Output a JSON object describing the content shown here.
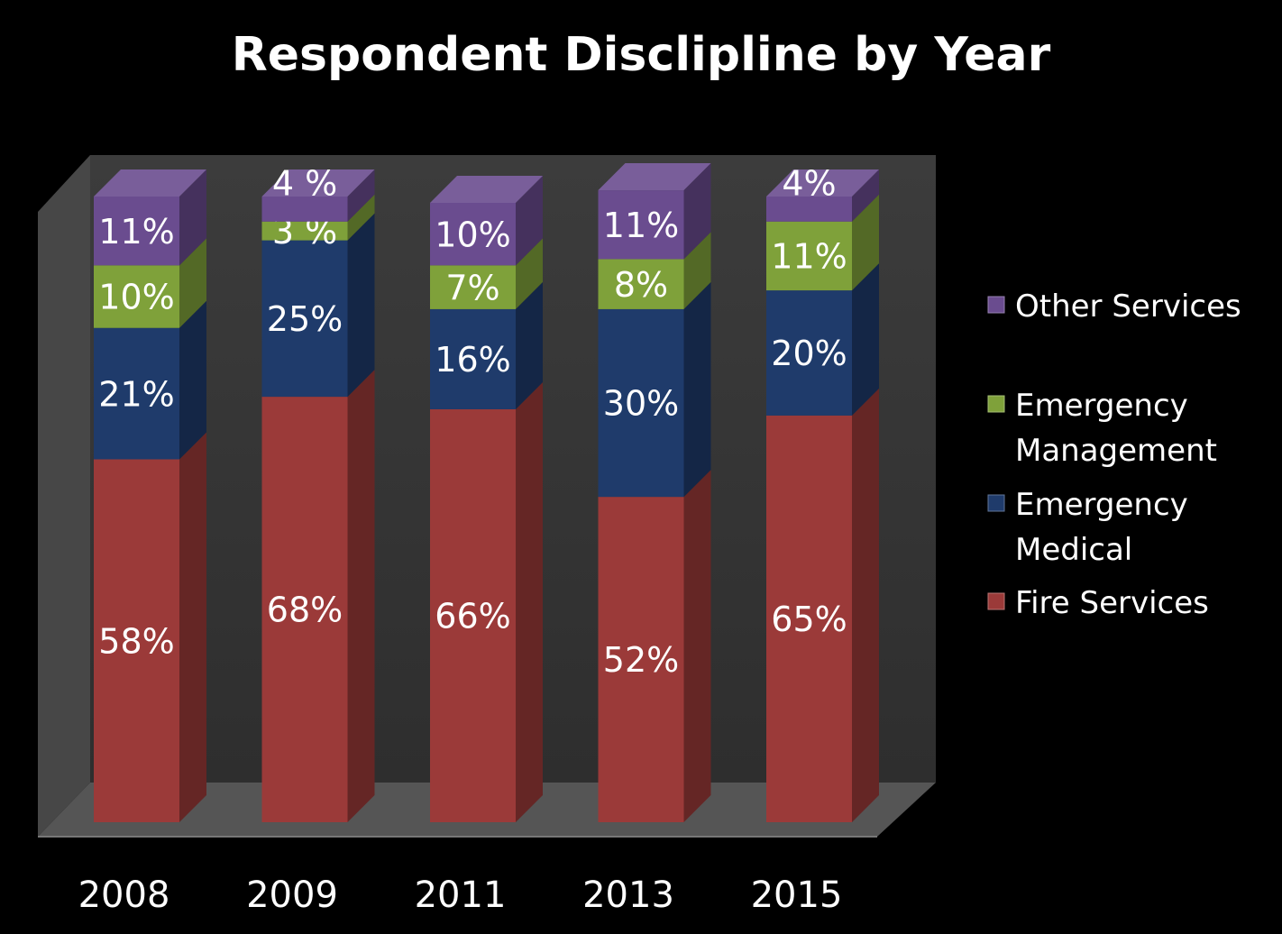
{
  "chart_data": {
    "type": "bar",
    "stacked": true,
    "three_d": true,
    "title": "Respondent Disclipline by Year",
    "categories": [
      "2008",
      "2009",
      "2011",
      "2013",
      "2015"
    ],
    "series": [
      {
        "name": "Fire Services",
        "color": "#9b3a39",
        "values": [
          58,
          68,
          66,
          52,
          65
        ],
        "labels": [
          "58%",
          "68%",
          "66%",
          "52%",
          "65%"
        ]
      },
      {
        "name": "Emergency Medical",
        "color": "#1f3b6b",
        "values": [
          21,
          25,
          16,
          30,
          20
        ],
        "labels": [
          "21%",
          "25%",
          "16%",
          "30%",
          "20%"
        ]
      },
      {
        "name": "Emergency Management",
        "color": "#7fa13a",
        "values": [
          10,
          3,
          7,
          8,
          11
        ],
        "labels": [
          "10%",
          "3 %",
          "7%",
          "8%",
          "11%"
        ]
      },
      {
        "name": "Other Services",
        "color": "#6a4c8f",
        "values": [
          11,
          4,
          10,
          11,
          4
        ],
        "labels": [
          "11%",
          "4 %",
          "10%",
          "11%",
          "4%"
        ]
      }
    ],
    "legend": {
      "position": "right",
      "order": [
        "Other Services",
        "Emergency Management",
        "Emergency Medical",
        "Fire Services"
      ]
    },
    "background_color": "#000000",
    "wall_color": "#3a3a3a",
    "text_color": "#ffffff"
  }
}
